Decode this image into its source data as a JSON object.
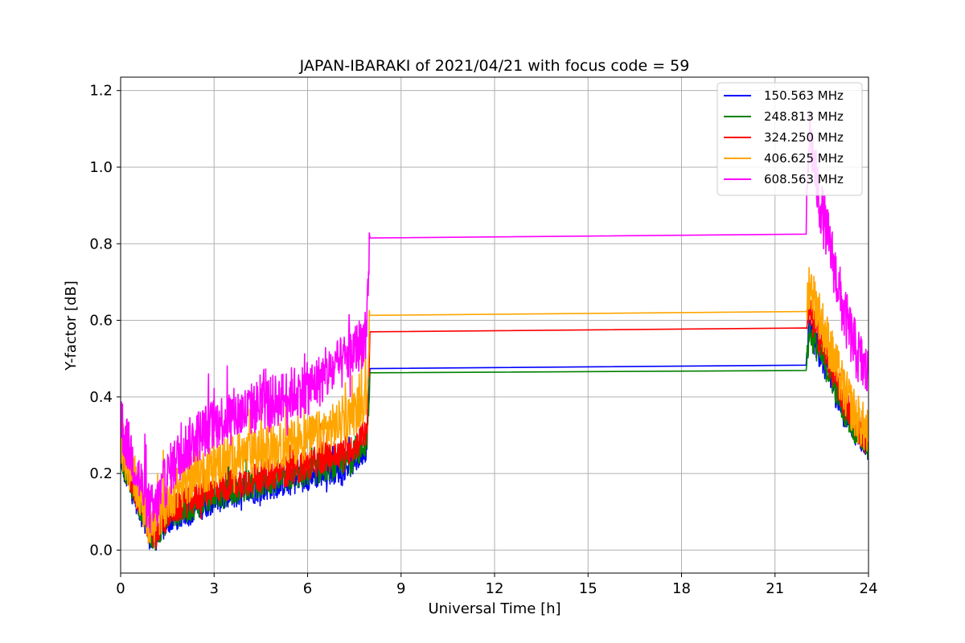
{
  "chart_data": {
    "type": "line",
    "title": "JAPAN-IBARAKI of 2021/04/21 with focus code = 59",
    "xlabel": "Universal Time [h]",
    "ylabel": "Y-factor [dB]",
    "xlim": [
      0,
      24
    ],
    "ylim": [
      -0.06,
      1.235
    ],
    "xticks": [
      0,
      3,
      6,
      9,
      12,
      15,
      18,
      21,
      24
    ],
    "yticks": [
      0.0,
      0.2,
      0.4,
      0.6,
      0.8,
      1.0,
      1.2
    ],
    "ytick_labels": [
      "0.0",
      "0.2",
      "0.4",
      "0.6",
      "0.8",
      "1.0",
      "1.2"
    ],
    "grid": true,
    "legend_position": "top-right",
    "series": [
      {
        "name": "150.563 MHz",
        "color": "#0000ff",
        "x": [
          0,
          0.1,
          0.3,
          0.5,
          0.7,
          0.9,
          1.1,
          1.3,
          1.6,
          2.0,
          2.5,
          3.0,
          3.5,
          4.0,
          4.5,
          5.0,
          5.5,
          6.0,
          6.5,
          7.0,
          7.5,
          7.9,
          8.0,
          22.0,
          22.1,
          22.4,
          22.8,
          23.2,
          23.6,
          24.0
        ],
        "y": [
          0.25,
          0.21,
          0.17,
          0.13,
          0.09,
          0.04,
          0.02,
          0.05,
          0.08,
          0.09,
          0.11,
          0.13,
          0.14,
          0.15,
          0.16,
          0.17,
          0.18,
          0.19,
          0.2,
          0.21,
          0.23,
          0.27,
          0.474,
          0.483,
          0.58,
          0.52,
          0.44,
          0.36,
          0.31,
          0.27
        ],
        "noise": 0.035
      },
      {
        "name": "248.813 MHz",
        "color": "#008000",
        "x": [
          0,
          0.1,
          0.3,
          0.5,
          0.7,
          0.9,
          1.1,
          1.3,
          1.6,
          2.0,
          2.5,
          3.0,
          3.5,
          4.0,
          4.5,
          5.0,
          5.5,
          6.0,
          6.5,
          7.0,
          7.5,
          7.9,
          8.0,
          22.0,
          22.1,
          22.4,
          22.8,
          23.2,
          23.6,
          24.0
        ],
        "y": [
          0.26,
          0.22,
          0.18,
          0.14,
          0.1,
          0.05,
          0.03,
          0.06,
          0.09,
          0.1,
          0.12,
          0.14,
          0.15,
          0.16,
          0.17,
          0.18,
          0.19,
          0.2,
          0.21,
          0.22,
          0.24,
          0.28,
          0.463,
          0.469,
          0.57,
          0.52,
          0.45,
          0.37,
          0.31,
          0.27
        ],
        "noise": 0.035
      },
      {
        "name": "324.250 MHz",
        "color": "#ff0000",
        "x": [
          0,
          0.1,
          0.3,
          0.5,
          0.7,
          0.9,
          1.1,
          1.3,
          1.6,
          2.0,
          2.5,
          3.0,
          3.5,
          4.0,
          4.5,
          5.0,
          5.5,
          6.0,
          6.5,
          7.0,
          7.5,
          7.9,
          8.0,
          22.0,
          22.1,
          22.4,
          22.8,
          23.2,
          23.6,
          24.0
        ],
        "y": [
          0.27,
          0.23,
          0.19,
          0.15,
          0.11,
          0.06,
          0.04,
          0.07,
          0.1,
          0.12,
          0.14,
          0.16,
          0.17,
          0.18,
          0.19,
          0.2,
          0.21,
          0.22,
          0.24,
          0.25,
          0.27,
          0.31,
          0.57,
          0.58,
          0.62,
          0.56,
          0.48,
          0.39,
          0.33,
          0.28
        ],
        "noise": 0.04
      },
      {
        "name": "406.625 MHz",
        "color": "#ffa500",
        "x": [
          0,
          0.1,
          0.3,
          0.5,
          0.7,
          0.9,
          1.1,
          1.3,
          1.6,
          2.0,
          2.5,
          3.0,
          3.5,
          4.0,
          4.5,
          5.0,
          5.5,
          6.0,
          6.5,
          7.0,
          7.5,
          7.9,
          8.0,
          22.0,
          22.1,
          22.4,
          22.8,
          23.2,
          23.6,
          24.0
        ],
        "y": [
          0.29,
          0.25,
          0.21,
          0.17,
          0.12,
          0.07,
          0.06,
          0.1,
          0.14,
          0.17,
          0.2,
          0.22,
          0.24,
          0.25,
          0.26,
          0.27,
          0.28,
          0.29,
          0.31,
          0.33,
          0.36,
          0.4,
          0.613,
          0.623,
          0.7,
          0.62,
          0.52,
          0.42,
          0.35,
          0.3
        ],
        "noise": 0.06
      },
      {
        "name": "608.563 MHz",
        "color": "#ff00ff",
        "x": [
          0,
          0.1,
          0.3,
          0.5,
          0.7,
          0.9,
          1.1,
          1.3,
          1.6,
          2.0,
          2.5,
          3.0,
          3.5,
          4.0,
          4.5,
          5.0,
          5.5,
          6.0,
          6.5,
          7.0,
          7.5,
          7.9,
          8.0,
          22.0,
          22.1,
          22.4,
          22.8,
          23.2,
          23.6,
          24.0
        ],
        "y": [
          0.36,
          0.3,
          0.26,
          0.21,
          0.16,
          0.11,
          0.1,
          0.15,
          0.21,
          0.26,
          0.3,
          0.33,
          0.35,
          0.36,
          0.38,
          0.39,
          0.41,
          0.42,
          0.45,
          0.48,
          0.52,
          0.56,
          0.815,
          0.825,
          1.1,
          0.92,
          0.78,
          0.62,
          0.52,
          0.45
        ],
        "noise": 0.07
      }
    ]
  }
}
